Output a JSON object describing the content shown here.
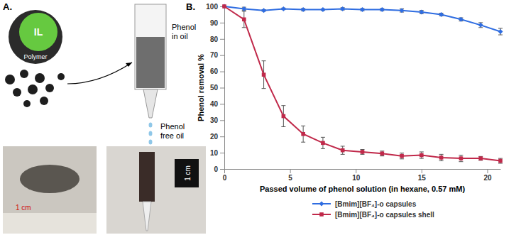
{
  "panel_a": {
    "label": "A.",
    "capsule_core": "IL",
    "capsule_shell": "Polymer",
    "column_input": [
      "Phenol",
      "in oil"
    ],
    "column_output": [
      "Phenol",
      "free oil"
    ],
    "scale_labels": [
      "1 cm",
      "1 cm"
    ]
  },
  "chart_data": {
    "type": "line",
    "panel_label": "B.",
    "x_label": "Passed volume of phenol solution (in hexane, 0.57 mM)",
    "y_label": "Phenol removal %",
    "x": [
      0,
      1.5,
      3,
      4.5,
      6,
      7.5,
      9,
      10.5,
      12,
      13.5,
      15,
      16.5,
      18,
      19.5,
      21
    ],
    "series": [
      {
        "name": "[Bmim][BF₄]-o capsules",
        "color": "#2f6de1",
        "marker": "diamond",
        "values": [
          100,
          98.5,
          97.5,
          98.5,
          98,
          98,
          98.5,
          98,
          98,
          97.5,
          96.5,
          95,
          92,
          88.5,
          84.5
        ],
        "errors": [
          0,
          1,
          0.5,
          0.5,
          0.7,
          0.5,
          0.7,
          0.7,
          0.7,
          1,
          1,
          0.8,
          1,
          1.5,
          2
        ]
      },
      {
        "name": "[Bmim][BF₄]-o capsules shell",
        "color": "#c0294a",
        "marker": "square",
        "values": [
          100,
          92,
          58,
          32.5,
          21.5,
          16,
          11.5,
          10.5,
          9.5,
          8,
          8.5,
          7,
          6.5,
          6.5,
          5
        ],
        "errors": [
          0,
          5,
          8.5,
          6.5,
          5,
          3.5,
          2.5,
          1.5,
          1.5,
          1.8,
          2,
          2,
          2,
          1.2,
          1.5
        ]
      }
    ],
    "xlim": [
      0,
      21
    ],
    "xticks": [
      0,
      5,
      10,
      15,
      20
    ],
    "ylim": [
      0,
      100
    ],
    "yticks": [
      0,
      10,
      20,
      30,
      40,
      50,
      60,
      70,
      80,
      90,
      100
    ],
    "grid": false,
    "legend": "bottom"
  }
}
